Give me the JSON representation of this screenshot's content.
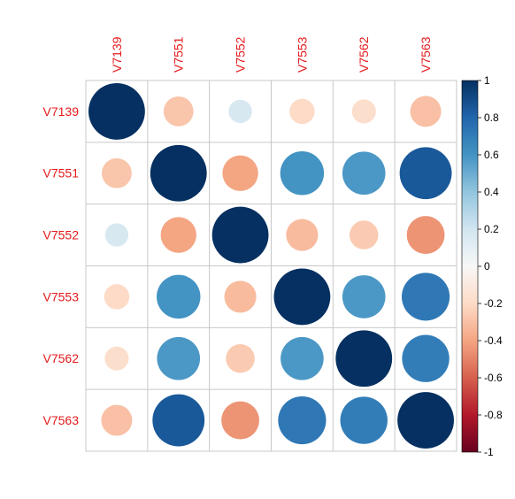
{
  "chart_data": {
    "type": "heatmap",
    "subtype": "correlation-circles",
    "variables": [
      "V7139",
      "V7551",
      "V7552",
      "V7553",
      "V7562",
      "V7563"
    ],
    "matrix": [
      [
        1.0,
        -0.28,
        0.17,
        -0.2,
        -0.18,
        -0.3
      ],
      [
        -0.28,
        1.0,
        -0.4,
        0.6,
        0.58,
        0.85
      ],
      [
        0.17,
        -0.4,
        1.0,
        -0.32,
        -0.26,
        -0.45
      ],
      [
        -0.2,
        0.6,
        -0.32,
        1.0,
        0.58,
        0.72
      ],
      [
        -0.18,
        0.58,
        -0.26,
        0.58,
        1.0,
        0.7
      ],
      [
        -0.3,
        0.85,
        -0.45,
        0.72,
        0.7,
        1.0
      ]
    ],
    "colorbar": {
      "range": [
        -1,
        1
      ],
      "ticks": [
        "1",
        "0.8",
        "0.6",
        "0.4",
        "0.2",
        "0",
        "-0.2",
        "-0.4",
        "-0.6",
        "-0.8",
        "-1"
      ]
    },
    "label_color": "#e41a1c",
    "grid": true,
    "legend_position": "right"
  }
}
